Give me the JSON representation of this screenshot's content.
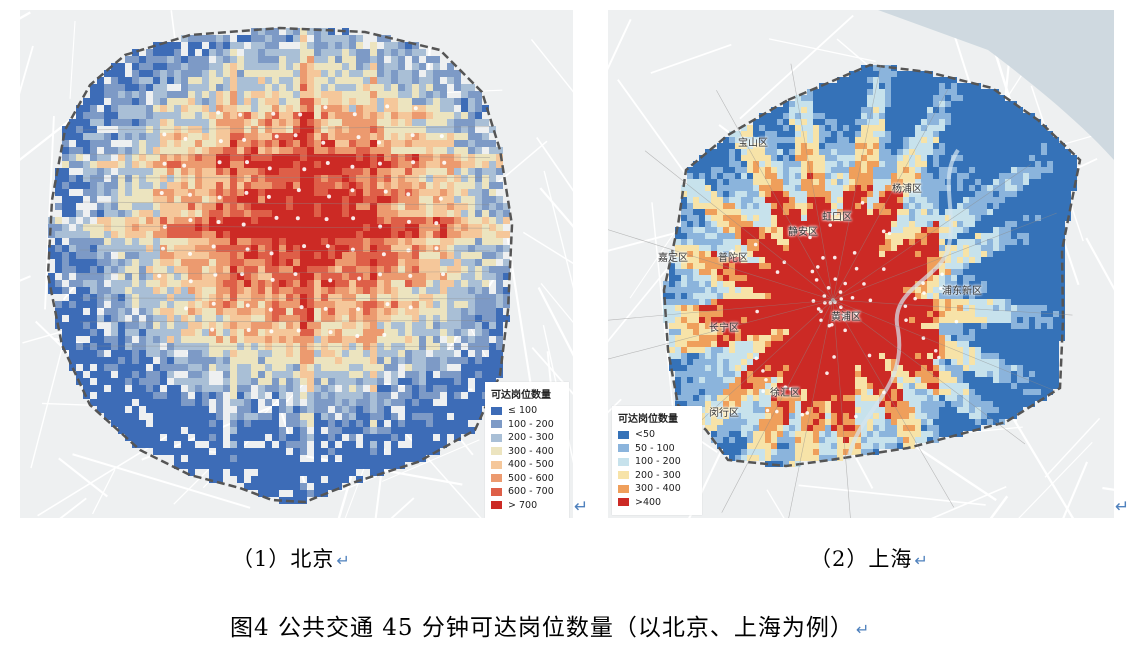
{
  "colors": {
    "beijing_scale": [
      "#3d6cb7",
      "#7d9ac6",
      "#a9bfd6",
      "#ece4bf",
      "#f5c79a",
      "#ec9a6f",
      "#de5f48",
      "#cc2a25"
    ],
    "shanghai_scale": [
      "#3572b8",
      "#8bb4dc",
      "#c7e2ec",
      "#f7e3a8",
      "#ef9f5b",
      "#cc2a25"
    ],
    "marker": "#4f81bd"
  },
  "beijing": {
    "legend_title": "可达岗位数量",
    "legend": [
      "≤ 100",
      "100 - 200",
      "200 - 300",
      "300 - 400",
      "400 - 500",
      "500 - 600",
      "600 - 700",
      "> 700"
    ],
    "caption": "（1）北京"
  },
  "shanghai": {
    "legend_title": "可达岗位数量",
    "legend": [
      "<50",
      "50 - 100",
      "100 - 200",
      "200 - 300",
      "300 - 400",
      ">400"
    ],
    "districts": [
      "宝山区",
      "杨浦区",
      "虹口区",
      "静安区",
      "嘉定区",
      "普陀区",
      "浦东新区",
      "长宁区",
      "黄浦区",
      "徐汇区",
      "闵行区"
    ],
    "caption": "（2）上海"
  },
  "figure_title": "图4 公共交通 45 分钟可达岗位数量（以北京、上海为例）",
  "return_icon": "↵"
}
